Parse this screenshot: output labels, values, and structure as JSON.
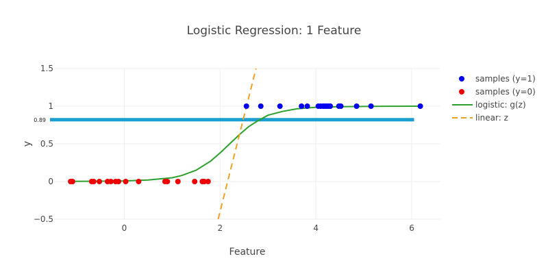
{
  "chart_data": {
    "type": "scatter",
    "title": "Logistic Regression: 1 Feature",
    "xlabel": "Feature",
    "ylabel": "y",
    "xlim": [
      -1.45,
      6.6
    ],
    "ylim": [
      -0.5,
      1.5
    ],
    "xticks": [
      0,
      2,
      4,
      6
    ],
    "yticks": [
      -0.5,
      0,
      0.5,
      1,
      1.5
    ],
    "ytick_labels": [
      "−0.5",
      "0",
      "0.5",
      "1",
      "1.5"
    ],
    "grid": true,
    "legend_position": "right",
    "series": [
      {
        "name": "samples (y=1)",
        "kind": "markers",
        "color": "#0000ee",
        "x": [
          2.55,
          2.85,
          3.25,
          3.7,
          3.82,
          4.05,
          4.1,
          4.15,
          4.18,
          4.22,
          4.26,
          4.3,
          4.48,
          4.52,
          4.85,
          5.15,
          6.18
        ],
        "y": [
          1,
          1,
          1,
          1,
          1,
          1,
          1,
          1,
          1,
          1,
          1,
          1,
          1,
          1,
          1,
          1,
          1
        ]
      },
      {
        "name": "samples (y=0)",
        "kind": "markers",
        "color": "#ee0000",
        "x": [
          -1.12,
          -1.08,
          -0.68,
          -0.64,
          -0.52,
          -0.35,
          -0.28,
          -0.18,
          -0.12,
          0.03,
          0.3,
          0.85,
          0.9,
          1.12,
          1.47,
          1.63,
          1.67,
          1.75
        ],
        "y": [
          0,
          0,
          0,
          0,
          0,
          0,
          0,
          0,
          0,
          0,
          0,
          0,
          0,
          0,
          0,
          0,
          0,
          0
        ]
      },
      {
        "name": "logistic: g(z)",
        "kind": "line",
        "color": "#2ca02c",
        "dash": "solid",
        "x": [
          -1.12,
          -0.5,
          0,
          0.5,
          1.0,
          1.2,
          1.5,
          1.8,
          2.0,
          2.2,
          2.4,
          2.6,
          2.8,
          3.0,
          3.3,
          3.6,
          4.0,
          4.5,
          5.0,
          5.5,
          6.18
        ],
        "y": [
          0.002,
          0.004,
          0.008,
          0.02,
          0.05,
          0.08,
          0.15,
          0.27,
          0.38,
          0.5,
          0.62,
          0.73,
          0.81,
          0.88,
          0.93,
          0.965,
          0.985,
          0.993,
          0.997,
          0.999,
          1.0
        ]
      },
      {
        "name": "linear: z",
        "kind": "line",
        "color": "#f0a020",
        "dash": "dashed",
        "x": [
          1.96,
          2.75
        ],
        "y": [
          -0.5,
          1.5
        ]
      }
    ],
    "reference_line": {
      "kind": "horizontal",
      "y": 0.82,
      "x": [
        -1.55,
        6.05
      ],
      "color": "#1a9fd0",
      "label": "0.89"
    }
  }
}
